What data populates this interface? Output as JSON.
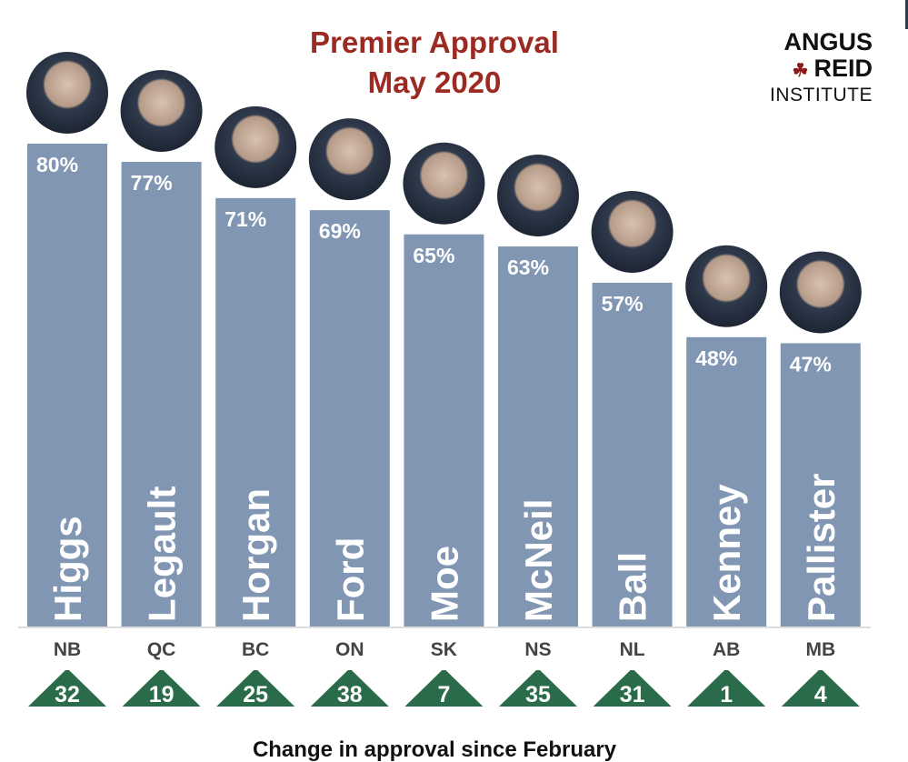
{
  "chart_data": {
    "type": "bar",
    "title": "Premier Approval",
    "subtitle": "May 2020",
    "categories": [
      "NB",
      "QC",
      "BC",
      "ON",
      "SK",
      "NS",
      "NL",
      "AB",
      "MB"
    ],
    "premiers": [
      "Higgs",
      "Legault",
      "Horgan",
      "Ford",
      "Moe",
      "McNeil",
      "Ball",
      "Kenney",
      "Pallister"
    ],
    "values": [
      80,
      77,
      71,
      69,
      65,
      63,
      57,
      48,
      47
    ],
    "value_labels": [
      "80%",
      "77%",
      "71%",
      "69%",
      "65%",
      "63%",
      "57%",
      "48%",
      "47%"
    ],
    "change_since_february": [
      32,
      19,
      25,
      38,
      7,
      35,
      31,
      1,
      4
    ],
    "change_direction": "up",
    "footer_label": "Change in approval since February",
    "ylim": [
      0,
      100
    ],
    "grid": false,
    "colors": {
      "bar": "#8196b3",
      "title": "#9b2a22",
      "change": "#2a6b4a",
      "category_label": "#444444"
    }
  },
  "logo": {
    "line1": "ANGUS",
    "line2": "REID",
    "line3": "INSTITUTE"
  }
}
